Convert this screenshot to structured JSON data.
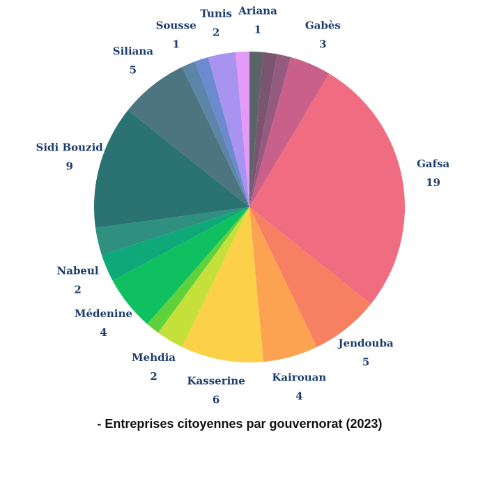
{
  "chart_data": {
    "type": "pie",
    "title": "- Entreprises citoyennes par gouvernorat (2023)",
    "categories": [
      "Ariana",
      null,
      null,
      "Gabès",
      "Gafsa",
      "Jendouba",
      "Kairouan",
      "Kasserine",
      "Mehdia",
      null,
      "Médenine",
      "Nabeul",
      null,
      "Sidi Bouzid",
      "Siliana",
      "Sousse",
      null,
      "Tunis",
      null
    ],
    "values": [
      1,
      1,
      1,
      3,
      19,
      5,
      4,
      6,
      2,
      1,
      4,
      2,
      2,
      9,
      5,
      1,
      1,
      2,
      1
    ],
    "colors": [
      "#5b6466",
      "#7a5470",
      "#945b7e",
      "#c9608a",
      "#f06c80",
      "#f77f62",
      "#fca352",
      "#fdd049",
      "#c6e03b",
      "#5ed13c",
      "#0fc060",
      "#0fa878",
      "#2f9080",
      "#2b7373",
      "#4d7580",
      "#5c85a7",
      "#6b8ad0",
      "#a893f0",
      "#e59af7"
    ]
  }
}
